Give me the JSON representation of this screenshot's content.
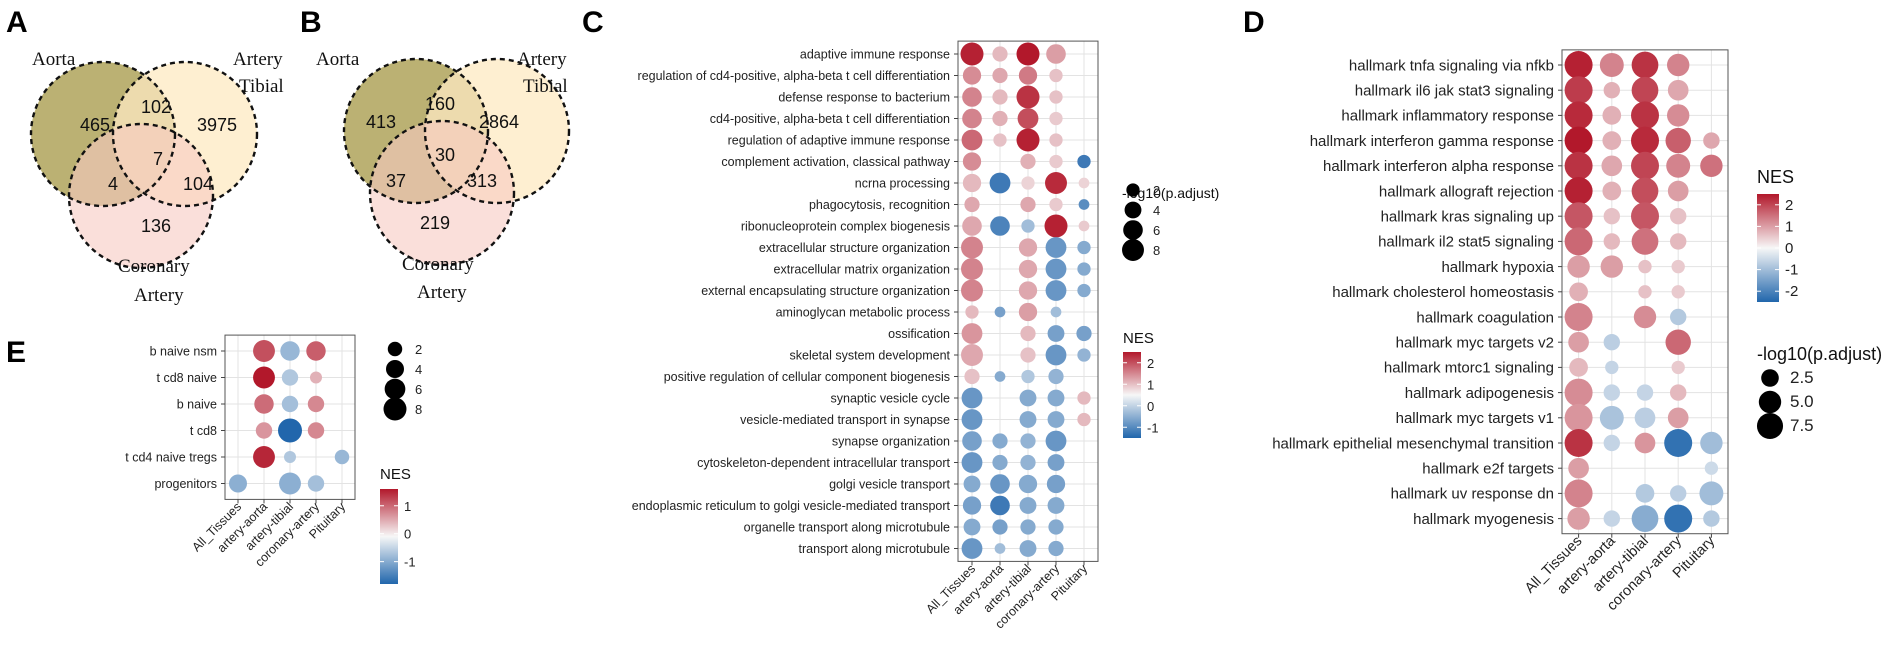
{
  "panels": {
    "A": {
      "label": "A",
      "sets": {
        "aorta": "Aorta",
        "tibial_1": "Artery",
        "tibial_2": "Tibial",
        "coronary_1": "Coronary",
        "coronary_2": "Artery"
      },
      "counts": {
        "aorta_only": "465",
        "aorta_tibial": "102",
        "tibial_only": "3975",
        "all_three": "7",
        "aorta_coronary": "4",
        "tibial_coronary": "104",
        "coronary_only": "136"
      },
      "colors": {
        "aorta": "#b7ad6b",
        "tibial": "#fde9c2",
        "coronary": "#f7c9c2"
      }
    },
    "B": {
      "label": "B",
      "sets": {
        "aorta": "Aorta",
        "tibial_1": "Artery",
        "tibial_2": "Tibial",
        "coronary_1": "Coronary",
        "coronary_2": "Artery"
      },
      "counts": {
        "aorta_only": "413",
        "aorta_tibial": "160",
        "tibial_only": "2864",
        "all_three": "30",
        "aorta_coronary": "37",
        "tibial_coronary": "313",
        "coronary_only": "219"
      },
      "colors": {
        "aorta": "#b7ad6b",
        "tibial": "#fde9c2",
        "coronary": "#f7c9c2"
      }
    },
    "C": {
      "label": "C"
    },
    "D": {
      "label": "D"
    },
    "E": {
      "label": "E"
    }
  },
  "color_scale": {
    "low": "#2166ac",
    "mid": "#f7f7f7",
    "high": "#b2182b"
  },
  "chart_data": [
    {
      "panel": "C",
      "type": "scatter",
      "title": "",
      "categories": [
        "All_Tissues",
        "artery-aorta",
        "artery-tibial",
        "coronary-artery",
        "Pituitary"
      ],
      "terms": [
        "adaptive immune response",
        "regulation of cd4-positive, alpha-beta t cell differentiation",
        "defense response to bacterium",
        "cd4-positive, alpha-beta t cell differentiation",
        "regulation of adaptive immune response",
        "complement activation, classical pathway",
        "ncrna processing",
        "phagocytosis, recognition",
        "ribonucleoprotein complex biogenesis",
        "extracellular structure organization",
        "extracellular matrix organization",
        "external encapsulating structure organization",
        "aminoglycan metabolic process",
        "ossification",
        "skeletal system development",
        "positive regulation of cellular component biogenesis",
        "synaptic vesicle cycle",
        "vesicle-mediated transport in synapse",
        "synapse organization",
        "cytoskeleton-dependent intracellular transport",
        "golgi vesicle transport",
        "endoplasmic reticulum to golgi vesicle-mediated transport",
        "organelle transport along microtubule",
        "transport along microtubule"
      ],
      "points": [
        [
          0,
          0,
          2.4,
          9
        ],
        [
          0,
          1,
          0.7,
          3
        ],
        [
          0,
          2,
          2.5,
          9
        ],
        [
          0,
          3,
          1.0,
          6
        ],
        [
          1,
          0,
          1.2,
          5
        ],
        [
          1,
          1,
          0.9,
          3
        ],
        [
          1,
          2,
          1.4,
          5
        ],
        [
          1,
          3,
          0.6,
          2
        ],
        [
          2,
          0,
          1.3,
          6
        ],
        [
          2,
          1,
          0.7,
          3
        ],
        [
          2,
          2,
          2.2,
          9
        ],
        [
          2,
          3,
          0.6,
          2
        ],
        [
          3,
          0,
          1.3,
          6
        ],
        [
          3,
          1,
          0.8,
          3
        ],
        [
          3,
          2,
          1.9,
          7
        ],
        [
          3,
          3,
          0.5,
          2
        ],
        [
          4,
          0,
          1.6,
          7
        ],
        [
          4,
          1,
          0.6,
          2
        ],
        [
          4,
          2,
          2.4,
          9
        ],
        [
          4,
          3,
          0.6,
          2
        ],
        [
          5,
          0,
          1.2,
          5
        ],
        [
          5,
          2,
          0.8,
          3
        ],
        [
          5,
          3,
          0.5,
          2
        ],
        [
          5,
          4,
          -1.3,
          2
        ],
        [
          6,
          0,
          0.7,
          5
        ],
        [
          6,
          1,
          -1.3,
          7
        ],
        [
          6,
          2,
          0.4,
          2
        ],
        [
          6,
          3,
          2.3,
          8
        ],
        [
          6,
          4,
          0.4,
          1
        ],
        [
          7,
          0,
          0.9,
          3
        ],
        [
          7,
          2,
          0.9,
          3
        ],
        [
          7,
          3,
          0.5,
          2
        ],
        [
          7,
          4,
          -1.1,
          1
        ],
        [
          8,
          0,
          0.9,
          6
        ],
        [
          8,
          1,
          -1.2,
          6
        ],
        [
          8,
          2,
          -0.6,
          2
        ],
        [
          8,
          3,
          2.4,
          9
        ],
        [
          8,
          4,
          0.5,
          1
        ],
        [
          9,
          0,
          1.3,
          8
        ],
        [
          9,
          2,
          0.9,
          5
        ],
        [
          9,
          3,
          -1.0,
          7
        ],
        [
          9,
          4,
          -0.8,
          2
        ],
        [
          10,
          0,
          1.3,
          8
        ],
        [
          10,
          2,
          0.9,
          5
        ],
        [
          10,
          3,
          -1.0,
          7
        ],
        [
          10,
          4,
          -0.8,
          2
        ],
        [
          11,
          0,
          1.3,
          8
        ],
        [
          11,
          2,
          0.9,
          5
        ],
        [
          11,
          3,
          -1.0,
          7
        ],
        [
          11,
          4,
          -0.8,
          2
        ],
        [
          12,
          0,
          0.7,
          2
        ],
        [
          12,
          1,
          -0.9,
          1
        ],
        [
          12,
          2,
          1.0,
          5
        ],
        [
          12,
          3,
          -0.6,
          1
        ],
        [
          13,
          0,
          1.1,
          7
        ],
        [
          13,
          2,
          0.7,
          3
        ],
        [
          13,
          3,
          -0.9,
          4
        ],
        [
          13,
          4,
          -0.9,
          3
        ],
        [
          14,
          0,
          0.9,
          8
        ],
        [
          14,
          2,
          0.6,
          3
        ],
        [
          14,
          3,
          -1.0,
          7
        ],
        [
          14,
          4,
          -0.7,
          2
        ],
        [
          15,
          0,
          0.6,
          3
        ],
        [
          15,
          1,
          -0.8,
          1
        ],
        [
          15,
          2,
          -0.5,
          2
        ],
        [
          15,
          3,
          -0.7,
          3
        ],
        [
          16,
          0,
          -1.0,
          7
        ],
        [
          16,
          2,
          -0.8,
          4
        ],
        [
          16,
          3,
          -0.8,
          4
        ],
        [
          16,
          4,
          0.7,
          2
        ],
        [
          17,
          0,
          -1.0,
          7
        ],
        [
          17,
          2,
          -0.8,
          4
        ],
        [
          17,
          3,
          -0.8,
          4
        ],
        [
          17,
          4,
          0.7,
          2
        ],
        [
          18,
          0,
          -0.9,
          6
        ],
        [
          18,
          1,
          -0.8,
          3
        ],
        [
          18,
          2,
          -0.7,
          3
        ],
        [
          18,
          3,
          -1.0,
          7
        ],
        [
          19,
          0,
          -1.0,
          7
        ],
        [
          19,
          1,
          -0.8,
          3
        ],
        [
          19,
          2,
          -0.7,
          3
        ],
        [
          19,
          3,
          -0.9,
          4
        ],
        [
          20,
          0,
          -0.8,
          4
        ],
        [
          20,
          1,
          -1.0,
          6
        ],
        [
          20,
          2,
          -0.8,
          5
        ],
        [
          20,
          3,
          -0.9,
          5
        ],
        [
          21,
          0,
          -0.9,
          5
        ],
        [
          21,
          1,
          -1.3,
          6
        ],
        [
          21,
          2,
          -0.8,
          4
        ],
        [
          21,
          3,
          -0.8,
          4
        ],
        [
          22,
          0,
          -0.8,
          4
        ],
        [
          22,
          1,
          -0.9,
          3
        ],
        [
          22,
          2,
          -0.8,
          3
        ],
        [
          22,
          3,
          -0.8,
          3
        ],
        [
          23,
          0,
          -1.0,
          7
        ],
        [
          23,
          1,
          -0.6,
          1
        ],
        [
          23,
          2,
          -0.8,
          4
        ],
        [
          23,
          3,
          -0.8,
          3
        ]
      ],
      "nes_legend": {
        "title": "NES",
        "ticks": [
          "2",
          "1",
          "0",
          "-1"
        ],
        "range": [
          -1.5,
          2.5
        ]
      },
      "size_legend": {
        "title": "-log10(p.adjust)",
        "ticks": [
          "2",
          "4",
          "6",
          "8"
        ],
        "values": [
          2,
          4,
          6,
          8
        ]
      }
    },
    {
      "panel": "D",
      "type": "scatter",
      "title": "",
      "categories": [
        "All_Tissues",
        "artery-aorta",
        "artery-tibial",
        "coronary-artery",
        "Pituitary"
      ],
      "terms": [
        "hallmark tnfa signaling via nfkb",
        "hallmark il6 jak stat3 signaling",
        "hallmark inflammatory response",
        "hallmark interferon gamma response",
        "hallmark interferon alpha response",
        "hallmark allograft rejection",
        "hallmark kras signaling up",
        "hallmark il2 stat5 signaling",
        "hallmark hypoxia",
        "hallmark cholesterol homeostasis",
        "hallmark coagulation",
        "hallmark myc targets v2",
        "hallmark mtorc1 signaling",
        "hallmark adipogenesis",
        "hallmark myc targets v1",
        "hallmark epithelial mesenchymal transition",
        "hallmark e2f targets",
        "hallmark uv response dn",
        "hallmark myogenesis"
      ],
      "points": [
        [
          0,
          0,
          2.4,
          9
        ],
        [
          0,
          1,
          1.3,
          6
        ],
        [
          0,
          2,
          2.2,
          8
        ],
        [
          0,
          3,
          1.3,
          5
        ],
        [
          1,
          0,
          2.1,
          9
        ],
        [
          1,
          1,
          0.8,
          2
        ],
        [
          1,
          2,
          2.0,
          8
        ],
        [
          1,
          3,
          0.9,
          4
        ],
        [
          2,
          0,
          2.3,
          9
        ],
        [
          2,
          1,
          0.8,
          3
        ],
        [
          2,
          2,
          2.2,
          9
        ],
        [
          2,
          3,
          1.2,
          5
        ],
        [
          3,
          0,
          2.5,
          9
        ],
        [
          3,
          1,
          0.8,
          3
        ],
        [
          3,
          2,
          2.3,
          9
        ],
        [
          3,
          3,
          1.7,
          7
        ],
        [
          3,
          4,
          0.9,
          2
        ],
        [
          4,
          0,
          2.2,
          9
        ],
        [
          4,
          1,
          0.9,
          4
        ],
        [
          4,
          2,
          2.0,
          9
        ],
        [
          4,
          3,
          1.3,
          6
        ],
        [
          4,
          4,
          1.5,
          5
        ],
        [
          5,
          0,
          2.4,
          9
        ],
        [
          5,
          1,
          0.8,
          3
        ],
        [
          5,
          2,
          1.9,
          8
        ],
        [
          5,
          3,
          1.0,
          4
        ],
        [
          6,
          0,
          1.8,
          9
        ],
        [
          6,
          1,
          0.6,
          2
        ],
        [
          6,
          2,
          1.8,
          9
        ],
        [
          6,
          3,
          0.6,
          2
        ],
        [
          7,
          0,
          1.6,
          9
        ],
        [
          7,
          1,
          0.7,
          2
        ],
        [
          7,
          2,
          1.5,
          8
        ],
        [
          7,
          3,
          0.7,
          2
        ],
        [
          8,
          0,
          1.0,
          5
        ],
        [
          8,
          1,
          1.0,
          5
        ],
        [
          8,
          2,
          0.6,
          1
        ],
        [
          8,
          3,
          0.5,
          1
        ],
        [
          9,
          0,
          0.8,
          3
        ],
        [
          9,
          2,
          0.6,
          1
        ],
        [
          9,
          3,
          0.5,
          1
        ],
        [
          10,
          0,
          1.3,
          9
        ],
        [
          10,
          2,
          1.2,
          5
        ],
        [
          10,
          3,
          -0.8,
          2
        ],
        [
          11,
          0,
          1.0,
          4
        ],
        [
          11,
          1,
          -0.7,
          2
        ],
        [
          11,
          3,
          1.6,
          7
        ],
        [
          12,
          0,
          0.7,
          3
        ],
        [
          12,
          1,
          -0.6,
          1
        ],
        [
          12,
          3,
          0.5,
          1
        ],
        [
          13,
          0,
          1.2,
          9
        ],
        [
          13,
          1,
          -0.6,
          2
        ],
        [
          13,
          2,
          -0.6,
          2
        ],
        [
          13,
          3,
          0.7,
          2
        ],
        [
          14,
          0,
          1.1,
          9
        ],
        [
          14,
          1,
          -0.9,
          6
        ],
        [
          14,
          2,
          -0.7,
          4
        ],
        [
          14,
          3,
          1.0,
          4
        ],
        [
          15,
          0,
          2.2,
          9
        ],
        [
          15,
          1,
          -0.6,
          2
        ],
        [
          15,
          2,
          1.1,
          4
        ],
        [
          15,
          3,
          -2.3,
          9
        ],
        [
          15,
          4,
          -1.0,
          5
        ],
        [
          16,
          0,
          1.0,
          4
        ],
        [
          16,
          4,
          -0.5,
          1
        ],
        [
          17,
          0,
          1.3,
          9
        ],
        [
          17,
          2,
          -0.8,
          3
        ],
        [
          17,
          3,
          -0.7,
          2
        ],
        [
          17,
          4,
          -1.0,
          6
        ],
        [
          18,
          0,
          1.0,
          5
        ],
        [
          18,
          1,
          -0.6,
          2
        ],
        [
          18,
          2,
          -1.3,
          8
        ],
        [
          18,
          3,
          -2.3,
          9
        ],
        [
          18,
          4,
          -0.8,
          2
        ]
      ],
      "nes_legend": {
        "title": "NES",
        "ticks": [
          "2",
          "1",
          "0",
          "-1",
          "-2"
        ],
        "range": [
          -2.5,
          2.5
        ]
      },
      "size_legend": {
        "title": "-log10(p.adjust)",
        "ticks": [
          "2.5",
          "5.0",
          "7.5"
        ],
        "values": [
          2.5,
          5.0,
          7.5
        ]
      }
    },
    {
      "panel": "E",
      "type": "scatter",
      "title": "",
      "categories": [
        "All_Tissues",
        "artery-aorta",
        "artery-tibial",
        "coronary-artery",
        "Pituitary"
      ],
      "terms": [
        "b naive nsm",
        "t cd8 naive",
        "b naive",
        "t cd8",
        "t cd4 naive tregs",
        "progenitors"
      ],
      "points": [
        [
          0,
          1,
          1.2,
          7
        ],
        [
          0,
          2,
          -0.8,
          5
        ],
        [
          0,
          3,
          1.1,
          5
        ],
        [
          1,
          1,
          1.6,
          7
        ],
        [
          1,
          2,
          -0.6,
          3
        ],
        [
          1,
          3,
          0.5,
          1
        ],
        [
          2,
          1,
          1.0,
          5
        ],
        [
          2,
          2,
          -0.7,
          3
        ],
        [
          2,
          3,
          0.8,
          3
        ],
        [
          3,
          1,
          0.7,
          3
        ],
        [
          3,
          2,
          -1.8,
          9
        ],
        [
          3,
          3,
          0.8,
          3
        ],
        [
          4,
          1,
          1.5,
          7
        ],
        [
          4,
          2,
          -0.6,
          1
        ],
        [
          4,
          4,
          -0.8,
          2
        ],
        [
          5,
          0,
          -0.9,
          4
        ],
        [
          5,
          2,
          -0.9,
          7
        ],
        [
          5,
          3,
          -0.7,
          3
        ]
      ],
      "nes_legend": {
        "title": "NES",
        "ticks": [
          "1",
          "0",
          "-1"
        ],
        "range": [
          -1.8,
          1.6
        ]
      },
      "size_legend": {
        "title": "",
        "ticks": [
          "2",
          "4",
          "6",
          "8"
        ],
        "values": [
          2,
          4,
          6,
          8
        ]
      }
    }
  ]
}
